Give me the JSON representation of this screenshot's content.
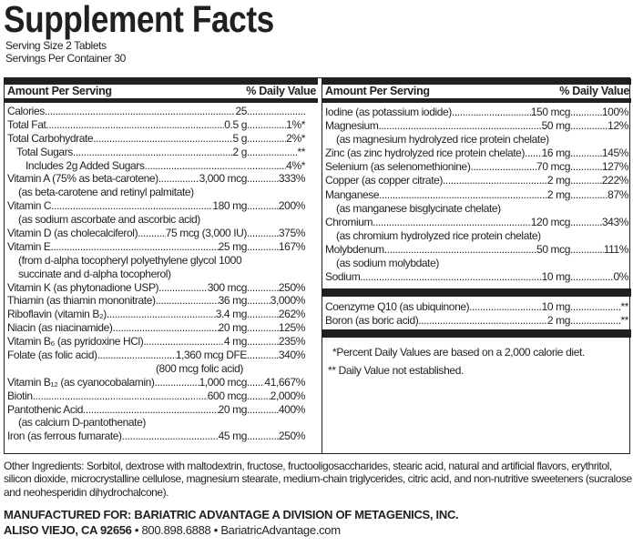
{
  "title": "Supplement Facts",
  "serving_size": "Serving Size 2 Tablets",
  "servings_per_container": "Servings Per Container 30",
  "header": {
    "amount": "Amount Per Serving",
    "dv": "% Daily Value"
  },
  "left_rows": [
    {
      "type": "item",
      "name": "Calories",
      "amount": "25",
      "dv": ""
    },
    {
      "type": "item",
      "name": "Total Fat",
      "amount": "0.5 g",
      "dv": "1%*"
    },
    {
      "type": "item",
      "name": "Total Carbohydrate",
      "amount": "5 g",
      "dv": "2%*"
    },
    {
      "type": "item",
      "indent": 1,
      "name": "Total Sugars ",
      "amount": "2 g",
      "dv": "**"
    },
    {
      "type": "item",
      "indent": 2,
      "name": "Includes 2g Added Sugars ",
      "amount": "",
      "dv": "4%*"
    },
    {
      "type": "item",
      "name": "Vitamin A (75% as beta-carotene)",
      "amount": "3,000 mcg",
      "dv": "333%"
    },
    {
      "type": "note",
      "name": "(as beta-carotene and retinyl palmitate)"
    },
    {
      "type": "item",
      "name": "Vitamin C ",
      "amount": "180 mg",
      "dv": "200%"
    },
    {
      "type": "note",
      "name": "(as sodium ascorbate and ascorbic acid)"
    },
    {
      "type": "item",
      "name": "Vitamin D (as cholecalciferol)",
      "amount": "75 mcg (3,000 IU)",
      "dv": "375%"
    },
    {
      "type": "item",
      "name": "Vitamin E",
      "amount": "25 mg",
      "dv": "167%"
    },
    {
      "type": "note",
      "name": "(from d-alpha tocopheryl polyethylene glycol 1000"
    },
    {
      "type": "note",
      "name": "succinate and d-alpha tocopherol)"
    },
    {
      "type": "item",
      "name": "Vitamin K (as phytonadione USP)",
      "amount": "300 mcg",
      "dv": "250%"
    },
    {
      "type": "item",
      "name": "Thiamin (as thiamin mononitrate) ",
      "amount": "36 mg",
      "dv": "3,000%"
    },
    {
      "type": "item",
      "name": "Riboflavin (vitamin B₂) ",
      "amount": "3.4 mg",
      "dv": "262%"
    },
    {
      "type": "item",
      "name": "Niacin (as niacinamide)",
      "amount": "20 mg",
      "dv": "125%"
    },
    {
      "type": "item",
      "name": "Vitamin B₆ (as pyridoxine HCl) ",
      "amount": "4 mg",
      "dv": "235%"
    },
    {
      "type": "item",
      "name": "Folate (as folic acid) ",
      "amount": "1,360 mcg DFE",
      "dv": "340%"
    },
    {
      "type": "cnote",
      "name": "(800 mcg folic acid)"
    },
    {
      "type": "item",
      "name": "Vitamin B₁₂ (as cyanocobalamin)",
      "amount": "1,000 mcg",
      "dv": "41,667%"
    },
    {
      "type": "item",
      "name": "Biotin ",
      "amount": "600 mcg",
      "dv": "2,000%"
    },
    {
      "type": "item",
      "name": "Pantothenic Acid",
      "amount": "20 mg",
      "dv": "400%"
    },
    {
      "type": "note",
      "name": "(as calcium D-pantothenate)"
    },
    {
      "type": "item",
      "name": "Iron (as ferrous fumarate)",
      "amount": "45 mg",
      "dv": "250%"
    }
  ],
  "right_rows": [
    {
      "type": "item",
      "name": "Iodine (as potassium iodide) ",
      "amount": "150 mcg",
      "dv": "100%"
    },
    {
      "type": "item",
      "name": "Magnesium",
      "amount": "50 mg",
      "dv": "12%"
    },
    {
      "type": "note",
      "name": "(as magnesium hydrolyzed rice protein chelate)"
    },
    {
      "type": "item",
      "name": "Zinc (as zinc hydrolyzed rice protein chelate)",
      "amount": "16 mg",
      "dv": "145%"
    },
    {
      "type": "item",
      "name": "Selenium (as selenomethionine) ",
      "amount": "70 mcg",
      "dv": "127%"
    },
    {
      "type": "item",
      "name": "Copper (as copper citrate)",
      "amount": "2 mg",
      "dv": "222%"
    },
    {
      "type": "item",
      "name": "Manganese",
      "amount": "2 mg",
      "dv": "87%"
    },
    {
      "type": "note",
      "name": "(as manganese bisglycinate chelate)"
    },
    {
      "type": "item",
      "name": "Chromium",
      "amount": "120 mcg",
      "dv": "343%"
    },
    {
      "type": "note",
      "name": "(as chromium hydrolyzed rice protein chelate)"
    },
    {
      "type": "item",
      "name": "Molybdenum ",
      "amount": "50 mcg",
      "dv": "111%"
    },
    {
      "type": "note",
      "name": "(as sodium molybdate)"
    },
    {
      "type": "item",
      "name": "Sodium ",
      "amount": "10 mg",
      "dv": "0%"
    }
  ],
  "right_rows_2": [
    {
      "type": "item",
      "name": "Coenzyme Q10 (as ubiquinone)",
      "amount": "10 mg",
      "dv": "**"
    },
    {
      "type": "item",
      "name": "Boron (as boric acid)",
      "amount": "2 mg",
      "dv": "**"
    }
  ],
  "footnotes": [
    "*Percent Daily Values are based on a 2,000 calorie diet.",
    "** Daily Value not established."
  ],
  "other_ingredients": "Other Ingredients: Sorbitol, dextrose with maltodextrin, fructose, fructooligosaccharides, stearic acid, natural and artificial flavors, erythritol, silicon dioxide, microcrystalline cellulose, magnesium stearate, medium-chain triglycerides, citric acid, and non-nutritive sweeteners (sucralose and neohesperidin dihydrochalcone).",
  "manufacturer": "MANUFACTURED FOR: BARIATRIC ADVANTAGE A DIVISION OF METAGENICS, INC.",
  "address": {
    "city": "ALISO VIEJO, CA 92656",
    "sep": " • ",
    "phone": "800.898.6888",
    "web": "BariatricAdvantage.com"
  }
}
